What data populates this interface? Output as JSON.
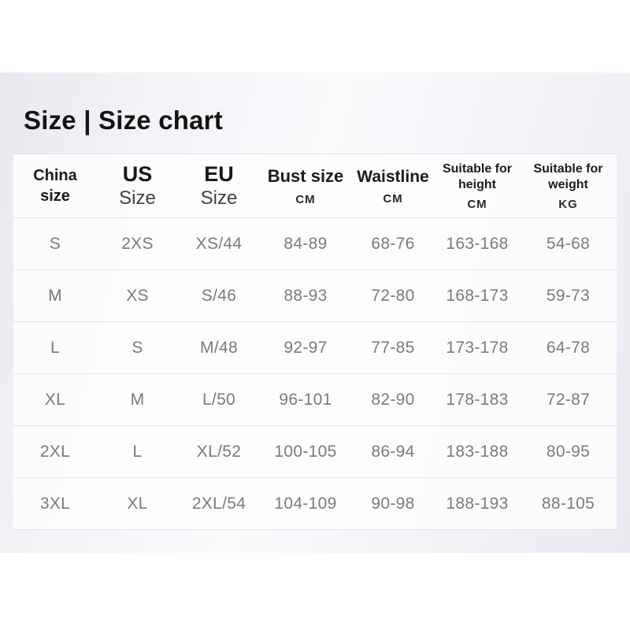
{
  "page": {
    "title": "Size | Size chart"
  },
  "colors": {
    "band_edge": "#e7e9ee",
    "band_center": "#fafbfd",
    "table_background": "#fdfdfe",
    "divider": "#e3e4e8",
    "heading_text": "#1b1b1e",
    "data_text": "#7a7a7f",
    "title_text": "#131313"
  },
  "table": {
    "headers": [
      {
        "line1": "China",
        "line2": "size"
      },
      {
        "main": "US",
        "sub": "Size"
      },
      {
        "main": "EU",
        "sub": "Size"
      },
      {
        "main": "Bust size",
        "unit": "CM"
      },
      {
        "main": "Waistline",
        "unit": "CM"
      },
      {
        "line1": "Suitable for",
        "line2": "height",
        "unit": "CM"
      },
      {
        "line1": "Suitable for",
        "line2": "weight",
        "unit": "KG"
      }
    ],
    "rows": [
      [
        "S",
        "2XS",
        "XS/44",
        "84-89",
        "68-76",
        "163-168",
        "54-68"
      ],
      [
        "M",
        "XS",
        "S/46",
        "88-93",
        "72-80",
        "168-173",
        "59-73"
      ],
      [
        "L",
        "S",
        "M/48",
        "92-97",
        "77-85",
        "173-178",
        "64-78"
      ],
      [
        "XL",
        "M",
        "L/50",
        "96-101",
        "82-90",
        "178-183",
        "72-87"
      ],
      [
        "2XL",
        "L",
        "XL/52",
        "100-105",
        "86-94",
        "183-188",
        "80-95"
      ],
      [
        "3XL",
        "XL",
        "2XL/54",
        "104-109",
        "90-98",
        "188-193",
        "88-105"
      ]
    ]
  },
  "chart_data": {
    "type": "table",
    "title": "Size | Size chart",
    "columns": [
      "China size",
      "US Size",
      "EU Size",
      "Bust size CM",
      "Waistline CM",
      "Suitable for height CM",
      "Suitable for weight KG"
    ],
    "rows": [
      [
        "S",
        "2XS",
        "XS/44",
        "84-89",
        "68-76",
        "163-168",
        "54-68"
      ],
      [
        "M",
        "XS",
        "S/46",
        "88-93",
        "72-80",
        "168-173",
        "59-73"
      ],
      [
        "L",
        "S",
        "M/48",
        "92-97",
        "77-85",
        "173-178",
        "64-78"
      ],
      [
        "XL",
        "M",
        "L/50",
        "96-101",
        "82-90",
        "178-183",
        "72-87"
      ],
      [
        "2XL",
        "L",
        "XL/52",
        "100-105",
        "86-94",
        "183-188",
        "80-95"
      ],
      [
        "3XL",
        "XL",
        "2XL/54",
        "104-109",
        "90-98",
        "188-193",
        "88-105"
      ]
    ]
  }
}
